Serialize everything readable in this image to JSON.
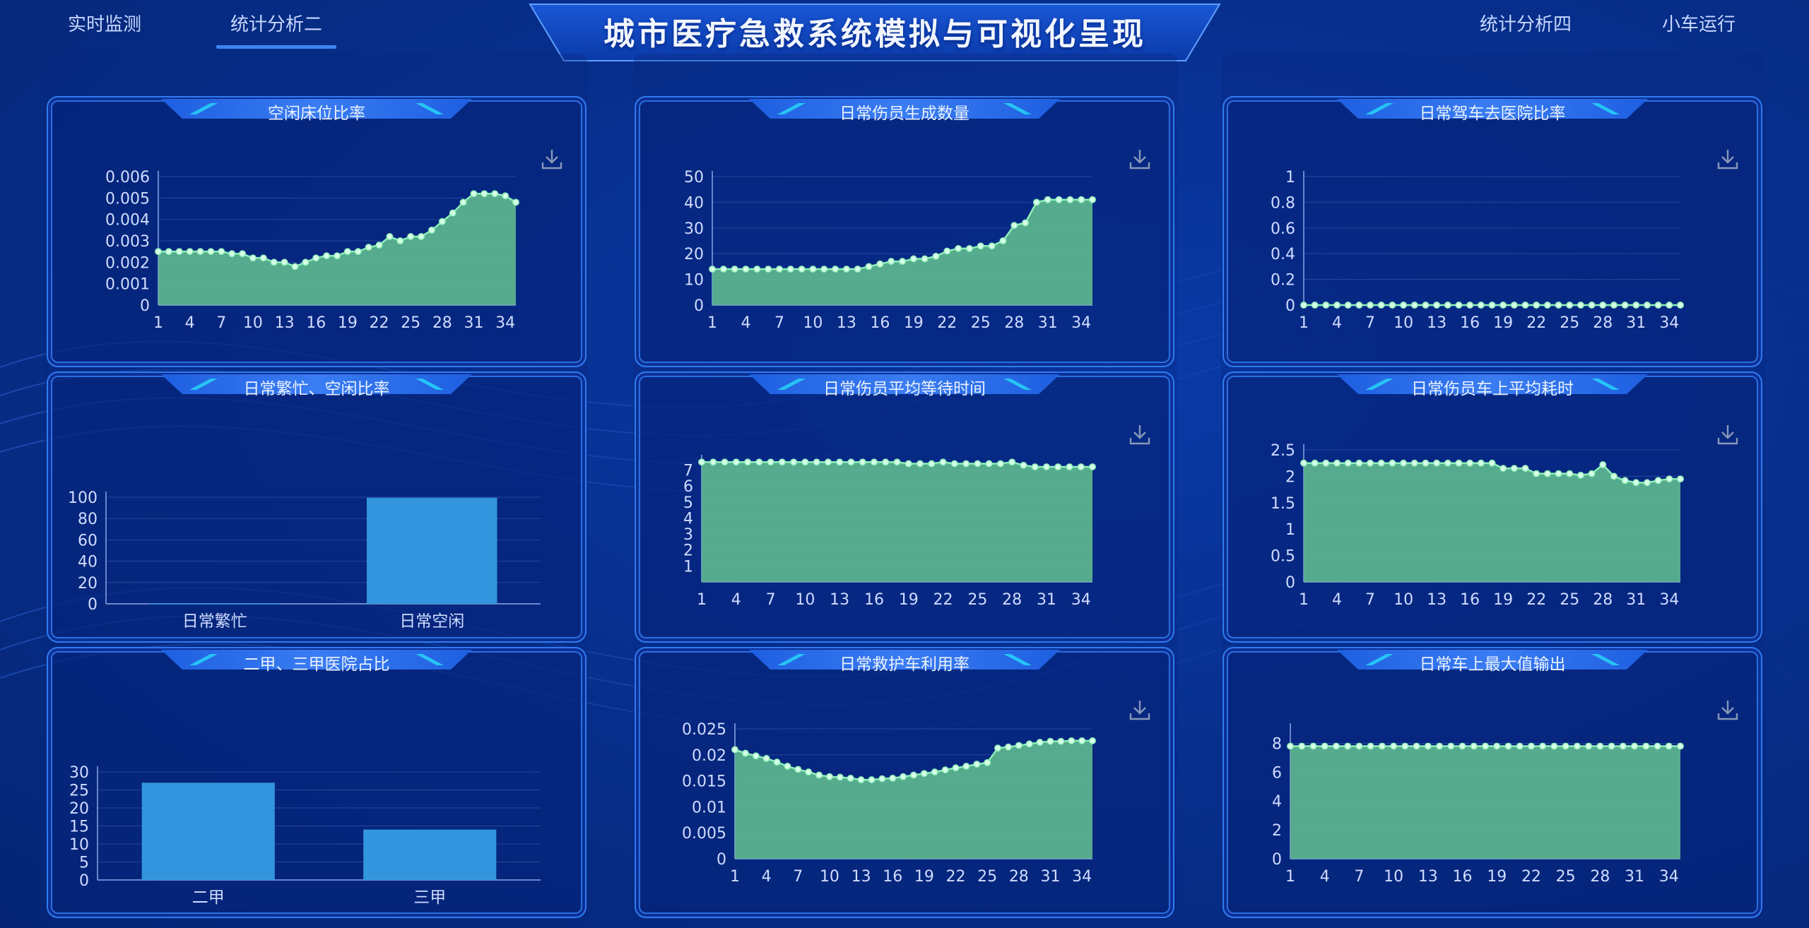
{
  "nav": {
    "left1": "实时监测",
    "left2": "统计分析二",
    "right1": "统计分析四",
    "right2": "小车运行"
  },
  "page_title": "城市医疗急救系统模拟与可视化呈现",
  "colors": {
    "area_fill": "#5fb98f",
    "area_line": "#8ff0b8",
    "bar": "#3295dd",
    "grid": "#3a5cb0",
    "axis_text": "#d0dcff"
  },
  "icons": {
    "download": "download-icon"
  },
  "panels": [
    {
      "title": "空闲床位比率"
    },
    {
      "title": "日常伤员生成数量"
    },
    {
      "title": "日常驾车去医院比率"
    },
    {
      "title": "日常繁忙、空闲比率"
    },
    {
      "title": "日常伤员平均等待时间"
    },
    {
      "title": "日常伤员车上平均耗时"
    },
    {
      "title": "二甲、三甲医院占比"
    },
    {
      "title": "日常救护车利用率"
    },
    {
      "title": "日常车上最大值输出"
    }
  ],
  "chart_data": [
    {
      "type": "area",
      "title": "空闲床位比率",
      "x": [
        1,
        2,
        3,
        4,
        5,
        6,
        7,
        8,
        9,
        10,
        11,
        12,
        13,
        14,
        15,
        16,
        17,
        18,
        19,
        20,
        21,
        22,
        23,
        24,
        25,
        26,
        27,
        28,
        29,
        30,
        31,
        32,
        33,
        34,
        35
      ],
      "x_ticks": [
        "1",
        "4",
        "7",
        "10",
        "13",
        "16",
        "19",
        "22",
        "25",
        "28",
        "31",
        "34"
      ],
      "y_ticks": [
        "0",
        "0.001",
        "0.002",
        "0.003",
        "0.004",
        "0.005",
        "0.006"
      ],
      "ylim": [
        0,
        0.006
      ],
      "values": [
        0.0025,
        0.0025,
        0.0025,
        0.0025,
        0.0025,
        0.0025,
        0.0025,
        0.0024,
        0.0024,
        0.0022,
        0.0022,
        0.002,
        0.002,
        0.0018,
        0.002,
        0.0022,
        0.0023,
        0.0023,
        0.0025,
        0.0025,
        0.0027,
        0.0028,
        0.0032,
        0.003,
        0.0032,
        0.0032,
        0.0035,
        0.0039,
        0.0043,
        0.0048,
        0.0052,
        0.0052,
        0.0052,
        0.0051,
        0.0048
      ]
    },
    {
      "type": "area",
      "title": "日常伤员生成数量",
      "x": [
        1,
        2,
        3,
        4,
        5,
        6,
        7,
        8,
        9,
        10,
        11,
        12,
        13,
        14,
        15,
        16,
        17,
        18,
        19,
        20,
        21,
        22,
        23,
        24,
        25,
        26,
        27,
        28,
        29,
        30,
        31,
        32,
        33,
        34,
        35
      ],
      "x_ticks": [
        "1",
        "4",
        "7",
        "10",
        "13",
        "16",
        "19",
        "22",
        "25",
        "28",
        "31",
        "34"
      ],
      "y_ticks": [
        "0",
        "10",
        "20",
        "30",
        "40",
        "50"
      ],
      "ylim": [
        0,
        50
      ],
      "values": [
        14,
        14,
        14,
        14,
        14,
        14,
        14,
        14,
        14,
        14,
        14,
        14,
        14,
        14,
        15,
        16,
        17,
        17,
        18,
        18,
        19,
        21,
        22,
        22,
        23,
        23,
        25,
        31,
        32,
        40,
        41,
        41,
        41,
        41,
        41
      ]
    },
    {
      "type": "area",
      "title": "日常驾车去医院比率",
      "x": [
        1,
        2,
        3,
        4,
        5,
        6,
        7,
        8,
        9,
        10,
        11,
        12,
        13,
        14,
        15,
        16,
        17,
        18,
        19,
        20,
        21,
        22,
        23,
        24,
        25,
        26,
        27,
        28,
        29,
        30,
        31,
        32,
        33,
        34,
        35
      ],
      "x_ticks": [
        "1",
        "4",
        "7",
        "10",
        "13",
        "16",
        "19",
        "22",
        "25",
        "28",
        "31",
        "34"
      ],
      "y_ticks": [
        "0",
        "0.2",
        "0.4",
        "0.6",
        "0.8",
        "1"
      ],
      "ylim": [
        0,
        1
      ],
      "values": [
        0,
        0,
        0,
        0,
        0,
        0,
        0,
        0,
        0,
        0,
        0,
        0,
        0,
        0,
        0,
        0,
        0,
        0,
        0,
        0,
        0,
        0,
        0,
        0,
        0,
        0,
        0,
        0,
        0,
        0,
        0,
        0,
        0,
        0,
        0
      ]
    },
    {
      "type": "bar",
      "title": "日常繁忙、空闲比率",
      "categories": [
        "日常繁忙",
        "日常空闲"
      ],
      "values": [
        0.5,
        99.5
      ],
      "y_ticks": [
        "0",
        "20",
        "40",
        "60",
        "80",
        "100"
      ],
      "ylim": [
        0,
        100
      ]
    },
    {
      "type": "area",
      "title": "日常伤员平均等待时间",
      "x": [
        1,
        2,
        3,
        4,
        5,
        6,
        7,
        8,
        9,
        10,
        11,
        12,
        13,
        14,
        15,
        16,
        17,
        18,
        19,
        20,
        21,
        22,
        23,
        24,
        25,
        26,
        27,
        28,
        29,
        30,
        31,
        32,
        33,
        34,
        35
      ],
      "x_ticks": [
        "1",
        "4",
        "7",
        "10",
        "13",
        "16",
        "19",
        "22",
        "25",
        "28",
        "31",
        "34"
      ],
      "y_ticks": [
        "1",
        "2",
        "3",
        "4",
        "5",
        "6",
        "7"
      ],
      "ylim": [
        0,
        7.6
      ],
      "values": [
        7.5,
        7.5,
        7.5,
        7.5,
        7.5,
        7.5,
        7.5,
        7.5,
        7.5,
        7.5,
        7.5,
        7.5,
        7.5,
        7.5,
        7.5,
        7.5,
        7.5,
        7.5,
        7.4,
        7.4,
        7.4,
        7.5,
        7.4,
        7.4,
        7.4,
        7.4,
        7.4,
        7.5,
        7.3,
        7.2,
        7.2,
        7.2,
        7.2,
        7.2,
        7.2
      ]
    },
    {
      "type": "area",
      "title": "日常伤员车上平均耗时",
      "x": [
        1,
        2,
        3,
        4,
        5,
        6,
        7,
        8,
        9,
        10,
        11,
        12,
        13,
        14,
        15,
        16,
        17,
        18,
        19,
        20,
        21,
        22,
        23,
        24,
        25,
        26,
        27,
        28,
        29,
        30,
        31,
        32,
        33,
        34,
        35
      ],
      "x_ticks": [
        "1",
        "4",
        "7",
        "10",
        "13",
        "16",
        "19",
        "22",
        "25",
        "28",
        "31",
        "34"
      ],
      "y_ticks": [
        "0",
        "0.5",
        "1",
        "1.5",
        "2",
        "2.5"
      ],
      "ylim": [
        0,
        2.5
      ],
      "values": [
        2.25,
        2.25,
        2.25,
        2.25,
        2.25,
        2.25,
        2.25,
        2.25,
        2.25,
        2.25,
        2.25,
        2.25,
        2.25,
        2.25,
        2.25,
        2.25,
        2.25,
        2.25,
        2.15,
        2.15,
        2.15,
        2.05,
        2.05,
        2.05,
        2.05,
        2.02,
        2.05,
        2.22,
        2.0,
        1.92,
        1.88,
        1.88,
        1.92,
        1.95,
        1.95
      ]
    },
    {
      "type": "bar",
      "title": "二甲、三甲医院占比",
      "categories": [
        "二甲",
        "三甲"
      ],
      "values": [
        27,
        14
      ],
      "y_ticks": [
        "0",
        "5",
        "10",
        "15",
        "20",
        "25",
        "30"
      ],
      "ylim": [
        0,
        30
      ]
    },
    {
      "type": "area",
      "title": "日常救护车利用率",
      "x": [
        1,
        2,
        3,
        4,
        5,
        6,
        7,
        8,
        9,
        10,
        11,
        12,
        13,
        14,
        15,
        16,
        17,
        18,
        19,
        20,
        21,
        22,
        23,
        24,
        25,
        26,
        27,
        28,
        29,
        30,
        31,
        32,
        33,
        34,
        35
      ],
      "x_ticks": [
        "1",
        "4",
        "7",
        "10",
        "13",
        "16",
        "19",
        "22",
        "25",
        "28",
        "31",
        "34"
      ],
      "y_ticks": [
        "0",
        "0.005",
        "0.01",
        "0.015",
        "0.02",
        "0.025"
      ],
      "ylim": [
        0,
        0.025
      ],
      "values": [
        0.021,
        0.0203,
        0.0198,
        0.0193,
        0.0186,
        0.0178,
        0.0172,
        0.0167,
        0.0161,
        0.0158,
        0.0157,
        0.0155,
        0.0152,
        0.0152,
        0.0154,
        0.0155,
        0.0158,
        0.0161,
        0.0164,
        0.0167,
        0.0171,
        0.0175,
        0.0178,
        0.0182,
        0.0185,
        0.0213,
        0.0215,
        0.0218,
        0.0221,
        0.0224,
        0.0226,
        0.0226,
        0.0227,
        0.0227,
        0.0227
      ]
    },
    {
      "type": "area",
      "title": "日常车上最大值输出",
      "x": [
        1,
        2,
        3,
        4,
        5,
        6,
        7,
        8,
        9,
        10,
        11,
        12,
        13,
        14,
        15,
        16,
        17,
        18,
        19,
        20,
        21,
        22,
        23,
        24,
        25,
        26,
        27,
        28,
        29,
        30,
        31,
        32,
        33,
        34,
        35
      ],
      "x_ticks": [
        "1",
        "4",
        "7",
        "10",
        "13",
        "16",
        "19",
        "22",
        "25",
        "28",
        "31",
        "34"
      ],
      "y_ticks": [
        "0",
        "2",
        "4",
        "6",
        "8"
      ],
      "ylim": [
        0,
        9
      ],
      "values": [
        7.8,
        7.8,
        7.8,
        7.8,
        7.8,
        7.8,
        7.8,
        7.8,
        7.8,
        7.8,
        7.8,
        7.8,
        7.8,
        7.8,
        7.8,
        7.8,
        7.8,
        7.8,
        7.8,
        7.8,
        7.8,
        7.8,
        7.8,
        7.8,
        7.8,
        7.8,
        7.8,
        7.8,
        7.8,
        7.8,
        7.8,
        7.8,
        7.8,
        7.8,
        7.8
      ]
    }
  ]
}
